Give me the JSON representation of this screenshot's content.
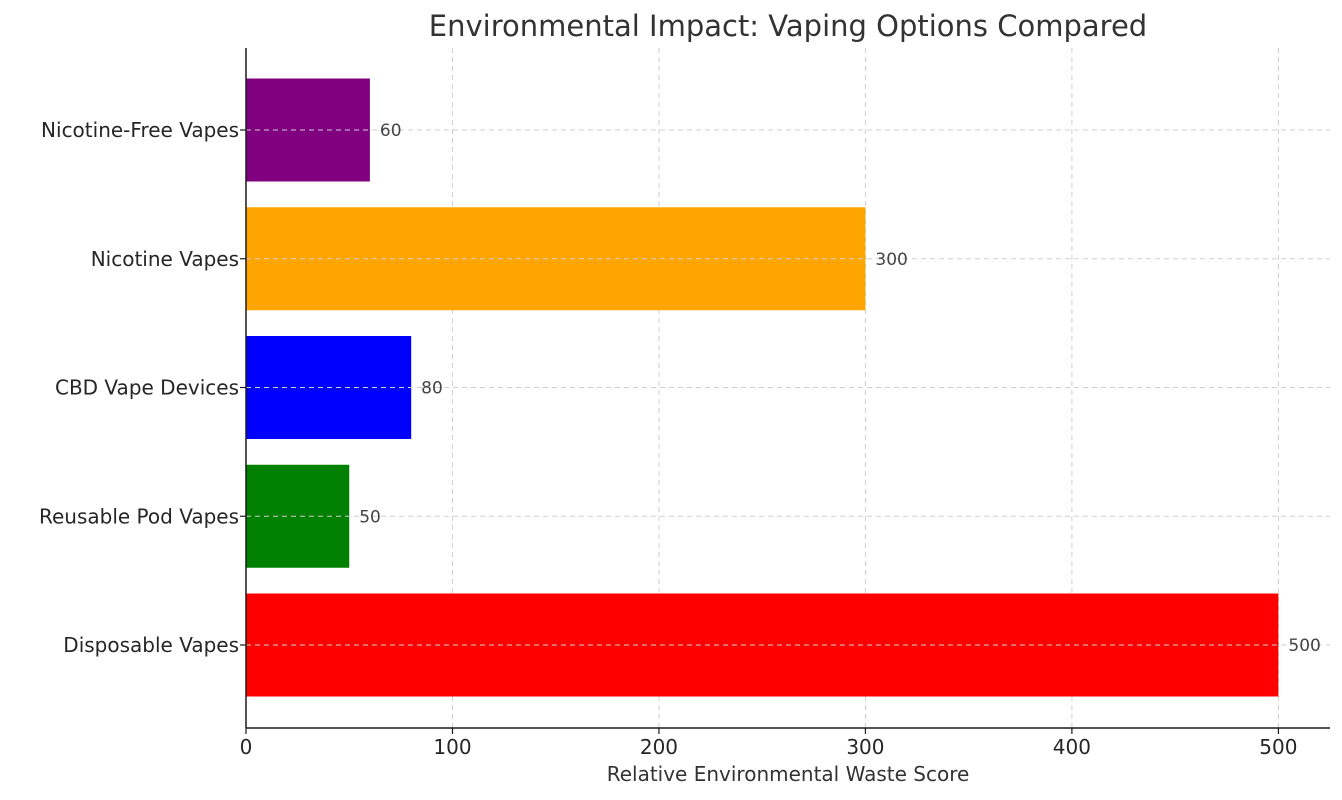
{
  "chart_data": {
    "type": "bar",
    "orientation": "horizontal",
    "title": "Environmental Impact: Vaping Options Compared",
    "xlabel": "Relative Environmental Waste Score",
    "ylabel": "",
    "xlim": [
      0,
      525
    ],
    "x_ticks": [
      0,
      100,
      200,
      300,
      400,
      500
    ],
    "grid": true,
    "categories": [
      "Disposable Vapes",
      "Reusable Pod Vapes",
      "CBD Vape Devices",
      "Nicotine Vapes",
      "Nicotine-Free Vapes"
    ],
    "values": [
      500,
      50,
      80,
      300,
      60
    ],
    "colors": [
      "#ff0000",
      "#008000",
      "#0000ff",
      "#ffa500",
      "#800080"
    ],
    "data_labels": [
      "500",
      "50",
      "80",
      "300",
      "60"
    ]
  }
}
